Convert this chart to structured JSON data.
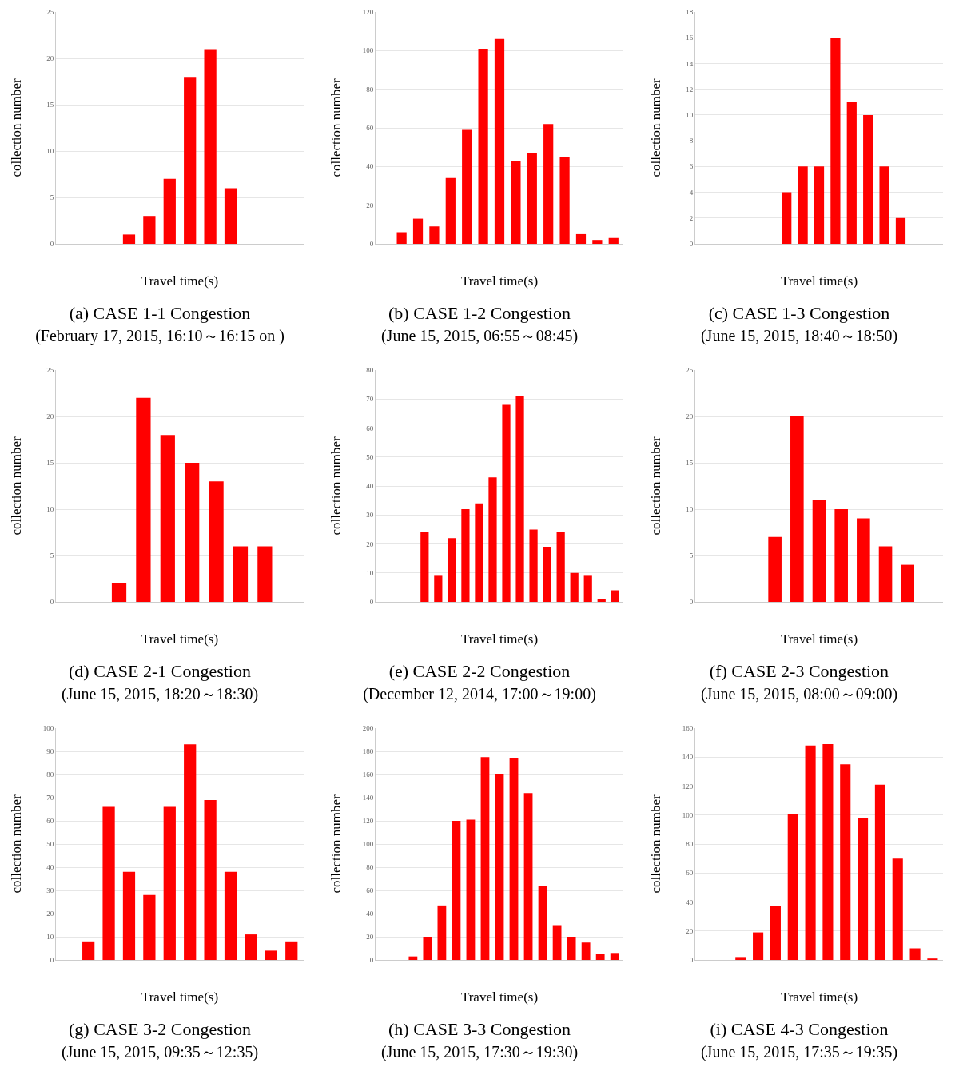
{
  "chart_data": [
    {
      "type": "bar",
      "title": "(a) CASE 1-1 Congestion",
      "subtitle": "(February 17, 2015, 16:10～16:15 on )",
      "xlabel": "Travel time(s)",
      "ylabel": "collection number",
      "categories": [
        null,
        null,
        null,
        null,
        null,
        null,
        null,
        null,
        null,
        null,
        null,
        null
      ],
      "values": [
        0,
        0,
        0,
        1,
        3,
        7,
        18,
        21,
        6,
        0,
        0,
        0
      ],
      "color": "#ff0000",
      "ylim": [
        0,
        25
      ],
      "yticks": [
        0,
        5,
        10,
        15,
        20,
        25
      ],
      "grid": "y",
      "tick_labels": "y"
    },
    {
      "type": "bar",
      "title": "(b) CASE 1-2 Congestion",
      "subtitle": "(June 15, 2015, 06:55～08:45)",
      "xlabel": "Travel time(s)",
      "ylabel": "collection number",
      "categories": [
        null,
        null,
        null,
        null,
        null,
        null,
        null,
        null,
        null,
        null,
        null,
        null,
        null,
        null,
        null
      ],
      "values": [
        0,
        6,
        13,
        9,
        34,
        59,
        101,
        106,
        43,
        47,
        62,
        45,
        5,
        2,
        3
      ],
      "color": "#ff0000",
      "ylim": [
        0,
        120
      ],
      "yticks": [
        0,
        20,
        40,
        60,
        80,
        100,
        120
      ],
      "grid": "y",
      "tick_labels": "y"
    },
    {
      "type": "bar",
      "title": "(c) CASE 1-3 Congestion",
      "subtitle": "(June 15, 2015, 18:40～18:50)",
      "xlabel": "Travel time(s)",
      "ylabel": "collection number",
      "categories": [
        null,
        null,
        null,
        null,
        null,
        null,
        null,
        null,
        null,
        null,
        null,
        null,
        null,
        null,
        null
      ],
      "values": [
        0,
        0,
        0,
        0,
        0,
        4,
        6,
        6,
        16,
        11,
        10,
        6,
        2,
        0,
        0
      ],
      "color": "#ff0000",
      "ylim": [
        0,
        18
      ],
      "yticks": [
        0,
        2,
        4,
        6,
        8,
        10,
        12,
        14,
        16,
        18
      ],
      "grid": "y",
      "tick_labels": "y"
    },
    {
      "type": "bar",
      "title": "(d) CASE 2-1 Congestion",
      "subtitle": "(June 15, 2015, 18:20～18:30)",
      "xlabel": "Travel time(s)",
      "ylabel": "collection number",
      "categories": [
        null,
        null,
        null,
        null,
        null,
        null,
        null,
        null,
        null,
        null
      ],
      "values": [
        0,
        0,
        2,
        22,
        18,
        15,
        13,
        6,
        6,
        0
      ],
      "color": "#ff0000",
      "ylim": [
        0,
        25
      ],
      "yticks": [
        0,
        5,
        10,
        15,
        20,
        25
      ],
      "grid": "y",
      "tick_labels": "y"
    },
    {
      "type": "bar",
      "title": "(e) CASE 2-2 Congestion",
      "subtitle": "(December 12, 2014, 17:00～19:00)",
      "xlabel": "Travel time(s)",
      "ylabel": "collection number",
      "categories": [
        null,
        null,
        null,
        null,
        null,
        null,
        null,
        null,
        null,
        null,
        null,
        null,
        null,
        null,
        null,
        null,
        null,
        null
      ],
      "values": [
        0,
        0,
        0,
        24,
        9,
        22,
        32,
        34,
        43,
        68,
        71,
        25,
        19,
        24,
        10,
        9,
        1,
        4
      ],
      "color": "#ff0000",
      "ylim": [
        0,
        80
      ],
      "yticks": [
        0,
        10,
        20,
        30,
        40,
        50,
        60,
        70,
        80
      ],
      "grid": "y",
      "tick_labels": "y"
    },
    {
      "type": "bar",
      "title": "(f) CASE 2-3 Congestion",
      "subtitle": "(June 15, 2015, 08:00～09:00)",
      "xlabel": "Travel time(s)",
      "ylabel": "collection number",
      "categories": [
        null,
        null,
        null,
        null,
        null,
        null,
        null,
        null,
        null,
        null,
        null
      ],
      "values": [
        0,
        0,
        0,
        7,
        20,
        11,
        10,
        9,
        6,
        4,
        0
      ],
      "color": "#ff0000",
      "ylim": [
        0,
        25
      ],
      "yticks": [
        0,
        5,
        10,
        15,
        20,
        25
      ],
      "grid": "y",
      "tick_labels": "y"
    },
    {
      "type": "bar",
      "title": "(g) CASE 3-2 Congestion",
      "subtitle": "(June 15, 2015, 09:35～12:35)",
      "xlabel": "Travel time(s)",
      "ylabel": "collection number",
      "categories": [
        null,
        null,
        null,
        null,
        null,
        null,
        null,
        null,
        null,
        null,
        null,
        null
      ],
      "values": [
        0,
        8,
        66,
        38,
        28,
        66,
        93,
        69,
        38,
        11,
        4,
        8
      ],
      "color": "#ff0000",
      "ylim": [
        0,
        100
      ],
      "yticks": [
        0,
        10,
        20,
        30,
        40,
        50,
        60,
        70,
        80,
        90,
        100
      ],
      "grid": "y",
      "tick_labels": "y"
    },
    {
      "type": "bar",
      "title": "(h) CASE 3-3 Congestion",
      "subtitle": "(June 15, 2015, 17:30～19:30)",
      "xlabel": "Travel time(s)",
      "ylabel": "collection number",
      "categories": [
        null,
        null,
        null,
        null,
        null,
        null,
        null,
        null,
        null,
        null,
        null,
        null,
        null,
        null,
        null,
        null,
        null
      ],
      "values": [
        0,
        0,
        3,
        20,
        47,
        120,
        121,
        175,
        160,
        174,
        144,
        64,
        30,
        20,
        15,
        5,
        6
      ],
      "color": "#ff0000",
      "ylim": [
        0,
        200
      ],
      "yticks": [
        0,
        20,
        40,
        60,
        80,
        100,
        120,
        140,
        160,
        180,
        200
      ],
      "grid": "y",
      "tick_labels": "y"
    },
    {
      "type": "bar",
      "title": "(i) CASE 4-3 Congestion",
      "subtitle": "(June 15, 2015, 17:35～19:35)",
      "xlabel": "Travel time(s)",
      "ylabel": "collection number",
      "categories": [
        null,
        null,
        null,
        null,
        null,
        null,
        null,
        null,
        null,
        null,
        null,
        null,
        null,
        null
      ],
      "values": [
        0,
        0,
        2,
        19,
        37,
        101,
        148,
        149,
        135,
        98,
        121,
        70,
        8,
        1
      ],
      "color": "#ff0000",
      "ylim": [
        0,
        160
      ],
      "yticks": [
        0,
        20,
        40,
        60,
        80,
        100,
        120,
        140,
        160
      ],
      "grid": "y",
      "tick_labels": "y"
    }
  ]
}
